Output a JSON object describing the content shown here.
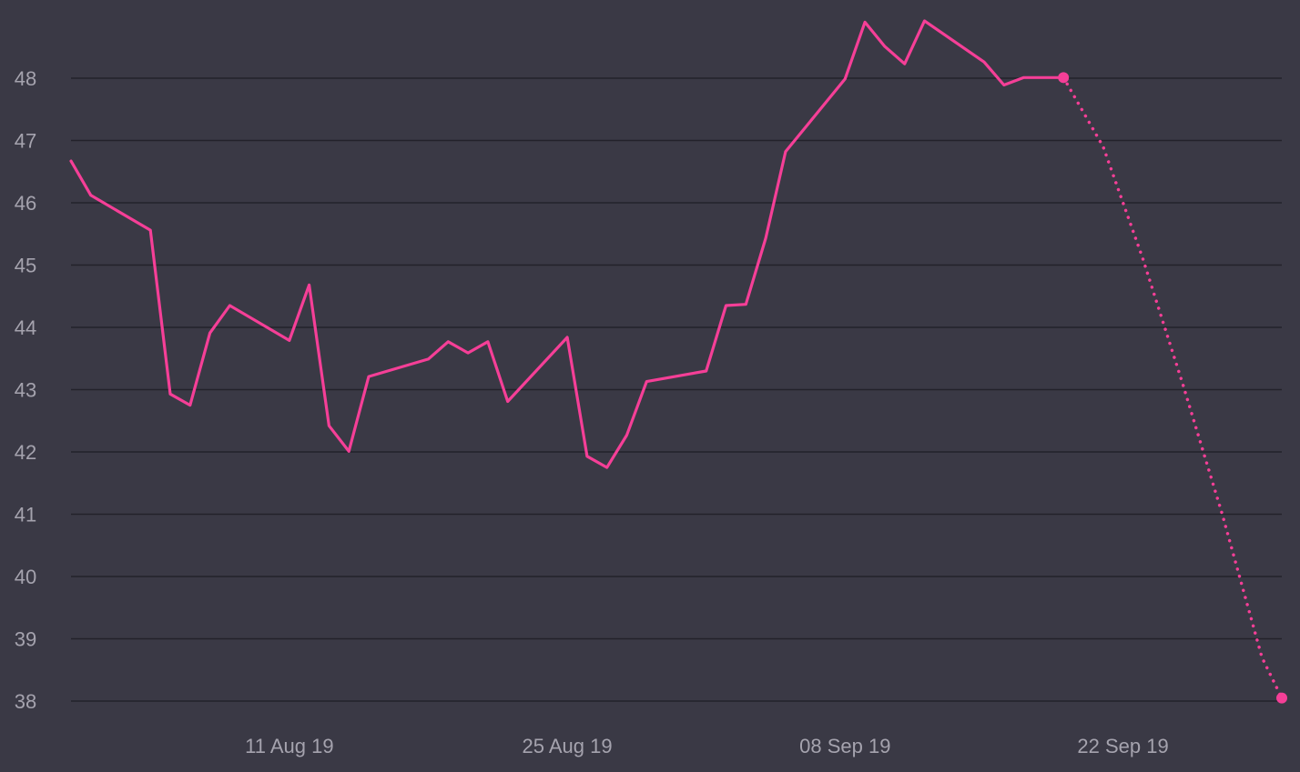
{
  "chart_data": {
    "type": "line",
    "background_color": "#3a3945",
    "grid_color": "#23222b",
    "tick_color": "#a5a3ae",
    "grid": true,
    "ylim": [
      38,
      48
    ],
    "yticks": [
      48,
      47,
      46,
      45,
      44,
      43,
      42,
      41,
      40,
      39,
      38
    ],
    "xlim": [
      "2019-07-31",
      "2019-09-30"
    ],
    "xticks": [
      {
        "date": "2019-08-11",
        "label": "11 Aug 19"
      },
      {
        "date": "2019-08-25",
        "label": "25 Aug 19"
      },
      {
        "date": "2019-09-08",
        "label": "08 Sep 19"
      },
      {
        "date": "2019-09-22",
        "label": "22 Sep 19"
      }
    ],
    "series": [
      {
        "style": "solid",
        "color": "#f53f97",
        "x": [
          "2019-07-31",
          "2019-08-01",
          "2019-08-04",
          "2019-08-05",
          "2019-08-06",
          "2019-08-07",
          "2019-08-08",
          "2019-08-11",
          "2019-08-12",
          "2019-08-13",
          "2019-08-14",
          "2019-08-15",
          "2019-08-18",
          "2019-08-19",
          "2019-08-20",
          "2019-08-21",
          "2019-08-22",
          "2019-08-25",
          "2019-08-26",
          "2019-08-27",
          "2019-08-28",
          "2019-08-29",
          "2019-09-01",
          "2019-09-02",
          "2019-09-03",
          "2019-09-04",
          "2019-09-05",
          "2019-09-08",
          "2019-09-09",
          "2019-09-10",
          "2019-09-11",
          "2019-09-12",
          "2019-09-15",
          "2019-09-16",
          "2019-09-17",
          "2019-09-18",
          "2019-09-19"
        ],
        "y": [
          46.67,
          46.12,
          45.56,
          42.93,
          42.75,
          43.91,
          44.35,
          43.79,
          44.68,
          42.42,
          42.01,
          43.21,
          43.49,
          43.77,
          43.59,
          43.77,
          42.81,
          43.84,
          41.93,
          41.75,
          42.27,
          43.13,
          43.3,
          44.35,
          44.37,
          45.43,
          46.82,
          47.99,
          48.9,
          48.51,
          48.23,
          48.92,
          48.26,
          47.89,
          48.01,
          48.01,
          48.01
        ]
      },
      {
        "style": "dotted",
        "color": "#f53f97",
        "x": [
          "2019-09-19",
          "2019-09-21",
          "2019-09-23",
          "2019-09-25",
          "2019-09-27",
          "2019-09-29",
          "2019-09-30"
        ],
        "y": [
          48.01,
          46.9,
          45.1,
          43.1,
          41.0,
          38.7,
          38.05
        ]
      }
    ],
    "markers": [
      {
        "date": "2019-09-19",
        "value": 48.01,
        "color": "#f53f97"
      },
      {
        "date": "2019-09-30",
        "value": 38.05,
        "color": "#f53f97"
      }
    ]
  }
}
